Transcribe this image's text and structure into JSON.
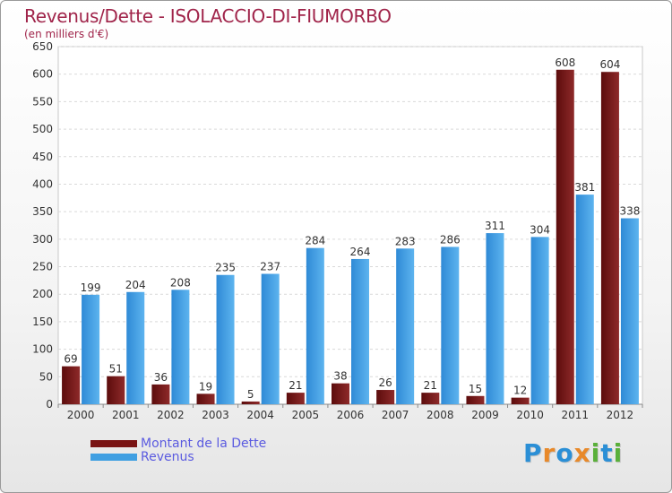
{
  "title": "Revenus/Dette - ISOLACCIO-DI-FIUMORBO",
  "subtitle": "(en milliers d'€)",
  "logo": "Proxiti",
  "colors": {
    "dette": "#7a1414",
    "revenus": "#3f9fe2",
    "title": "#a0244a",
    "legend_text": "#5b5be0"
  },
  "chart_data": {
    "type": "bar",
    "categories": [
      "2000",
      "2001",
      "2002",
      "2003",
      "2004",
      "2005",
      "2006",
      "2007",
      "2008",
      "2009",
      "2010",
      "2011",
      "2012"
    ],
    "series": [
      {
        "name": "Montant de la Dette",
        "color": "#7a1414",
        "values": [
          69,
          51,
          36,
          19,
          5,
          21,
          38,
          26,
          21,
          15,
          12,
          608,
          604
        ]
      },
      {
        "name": "Revenus",
        "color": "#3f9fe2",
        "values": [
          199,
          204,
          208,
          235,
          237,
          284,
          264,
          283,
          286,
          311,
          304,
          381,
          338
        ]
      }
    ],
    "ylim": [
      0,
      650
    ],
    "yticks": [
      0,
      50,
      100,
      150,
      200,
      250,
      300,
      350,
      400,
      450,
      500,
      550,
      600,
      650
    ],
    "grid": true,
    "legend_position": "bottom-left"
  }
}
